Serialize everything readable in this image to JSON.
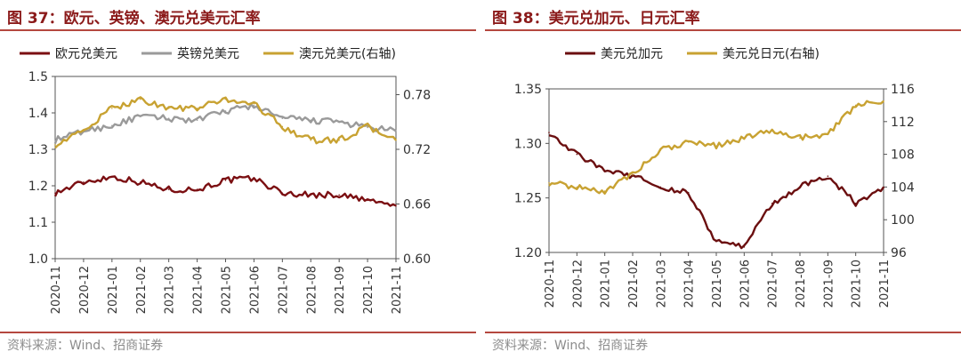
{
  "left_panel": {
    "title": "图 37：欧元、英镑、澳元兑美元汇率",
    "source": "资料来源：Wind、招商证券"
  },
  "right_panel": {
    "title": "图 38：美元兑加元、日元汇率",
    "source": "资料来源：Wind、招商证券"
  },
  "chart_data": [
    {
      "type": "line",
      "title": "欧元、英镑、澳元兑美元汇率",
      "x": [
        "2020-11",
        "2020-12",
        "2021-01",
        "2021-02",
        "2021-03",
        "2021-04",
        "2021-05",
        "2021-06",
        "2021-07",
        "2021-08",
        "2021-09",
        "2021-10",
        "2021-11"
      ],
      "x_tick_labels": [
        "2020-11",
        "2020-12",
        "2021-01",
        "2021-02",
        "2021-03",
        "2021-04",
        "2021-05",
        "2021-06",
        "2021-07",
        "2021-08",
        "2021-09",
        "2021-10",
        "2021-11"
      ],
      "y_left": {
        "ylim": [
          1.0,
          1.5
        ],
        "ticks": [
          "1.0",
          "1.1",
          "1.2",
          "1.3",
          "1.4",
          "1.5"
        ]
      },
      "y_right": {
        "ylim": [
          0.6,
          0.8
        ],
        "ticks": [
          "0.60",
          "0.66",
          "0.72",
          "0.78"
        ]
      },
      "legend_position": "top",
      "series": [
        {
          "name": "欧元兑美元",
          "axis": "left",
          "color": "#7b0f12",
          "values": [
            1.18,
            1.21,
            1.225,
            1.21,
            1.19,
            1.19,
            1.215,
            1.22,
            1.18,
            1.175,
            1.175,
            1.16,
            1.145
          ]
        },
        {
          "name": "英镑兑美元",
          "axis": "left",
          "color": "#9a9a9a",
          "values": [
            1.325,
            1.35,
            1.365,
            1.39,
            1.385,
            1.38,
            1.405,
            1.42,
            1.385,
            1.38,
            1.375,
            1.36,
            1.35
          ]
        },
        {
          "name": "澳元兑美元(右轴)",
          "axis": "right",
          "color": "#c8a232",
          "values": [
            0.725,
            0.74,
            0.765,
            0.775,
            0.765,
            0.765,
            0.775,
            0.77,
            0.745,
            0.73,
            0.73,
            0.745,
            0.73
          ]
        }
      ]
    },
    {
      "type": "line",
      "title": "美元兑加元、日元汇率",
      "x": [
        "2020-11",
        "2020-12",
        "2021-01",
        "2021-02",
        "2021-03",
        "2021-04",
        "2021-05",
        "2021-06",
        "2021-07",
        "2021-08",
        "2021-09",
        "2021-10",
        "2021-11"
      ],
      "x_tick_labels": [
        "2020-11",
        "2020-12",
        "2021-01",
        "2021-02",
        "2021-03",
        "2021-04",
        "2021-05",
        "2021-06",
        "2021-07",
        "2021-08",
        "2021-09",
        "2021-10",
        "2021-11"
      ],
      "y_left": {
        "ylim": [
          1.2,
          1.35
        ],
        "ticks": [
          "1.20",
          "1.25",
          "1.30",
          "1.35"
        ]
      },
      "y_right": {
        "ylim": [
          96,
          116
        ],
        "ticks": [
          "96",
          "100",
          "104",
          "108",
          "112",
          "116"
        ]
      },
      "legend_position": "top",
      "series": [
        {
          "name": "美元兑加元",
          "axis": "left",
          "color": "#6b0f10",
          "values": [
            1.31,
            1.29,
            1.275,
            1.27,
            1.26,
            1.255,
            1.21,
            1.205,
            1.245,
            1.26,
            1.27,
            1.245,
            1.26
          ]
        },
        {
          "name": "美元兑日元(右轴)",
          "axis": "right",
          "color": "#c8a232",
          "values": [
            104.5,
            104,
            103.5,
            105.5,
            108.5,
            109.5,
            109,
            110,
            111,
            110,
            110.5,
            114,
            114.5
          ]
        }
      ]
    }
  ]
}
